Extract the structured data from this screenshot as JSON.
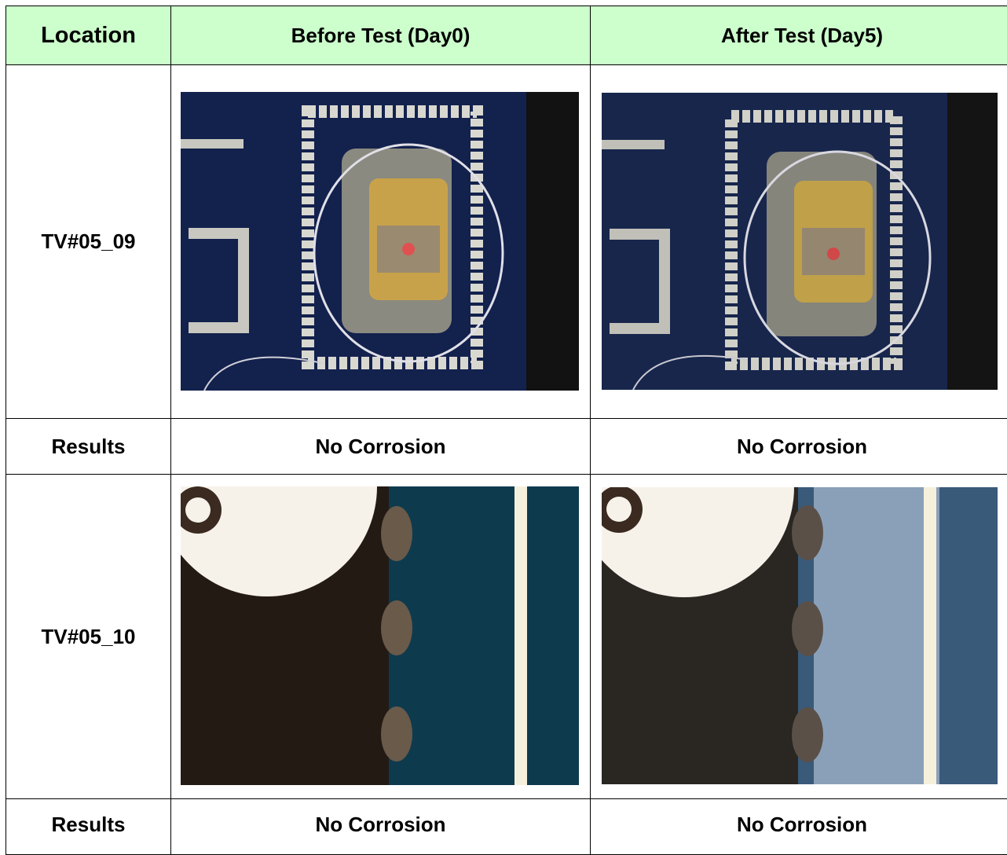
{
  "table": {
    "header": [
      "Location",
      "Before Test (Day0)",
      "After Test (Day5)"
    ],
    "rows": [
      [
        "TV#05_09"
      ],
      [
        "Results",
        "No Corrosion",
        "No Corrosion"
      ],
      [
        "TV#05_10"
      ],
      [
        "Results",
        "No Corrosion",
        "No Corrosion"
      ]
    ]
  }
}
